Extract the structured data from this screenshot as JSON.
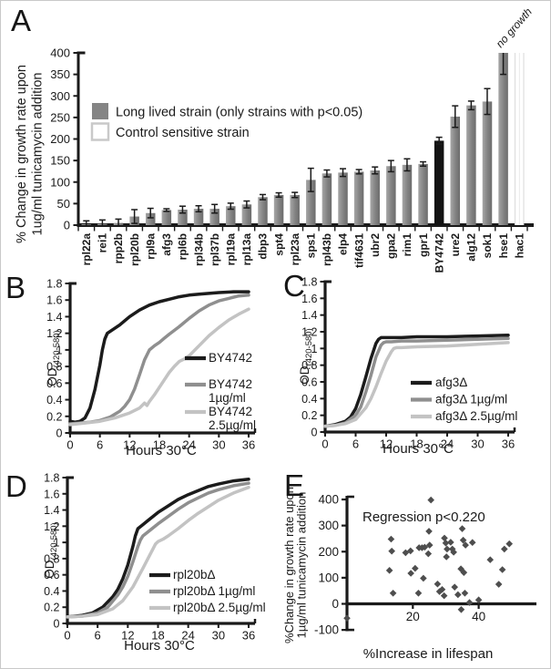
{
  "panel_letters": [
    "A",
    "B",
    "C",
    "D",
    "E"
  ],
  "colors": {
    "axis": "#1a1a1a",
    "bar_dark": "#828282",
    "bar_black": "#131313",
    "bar_control_stroke": "#c9c9c9",
    "legend_swatch": "#858585",
    "series": [
      "#1b1b1b",
      "#8f8f8f",
      "#c3c3c3"
    ],
    "scatter": "#4e4e4e"
  },
  "chart_data": [
    {
      "panel": "A",
      "type": "bar",
      "ylabel_lines": [
        "% Change in growth rate upon",
        "1ug/ml tunicamycin addition"
      ],
      "ylim": [
        0,
        400
      ],
      "yticks": [
        0,
        50,
        100,
        150,
        200,
        250,
        300,
        350,
        400
      ],
      "legend": [
        {
          "label": "Long lived strain (only strains with p<0.05)",
          "swatch": "dark"
        },
        {
          "label": "Control sensitive strain",
          "swatch": "control"
        }
      ],
      "annotation": "no growth",
      "categories": [
        "rpl22a",
        "rei1",
        "rpp2b",
        "rpl20b",
        "rpl9a",
        "afg3",
        "rpl6b",
        "rpl34b",
        "rpl37b",
        "rpl19a",
        "rpl13a",
        "dbp3",
        "spt4",
        "rpl23a",
        "sps1",
        "rpl43b",
        "elp4",
        "tif4631",
        "ubr2",
        "gpa2",
        "rim1",
        "gpr1",
        "BY4742",
        "ure2",
        "alg12",
        "sok1",
        "hse1",
        "hac1"
      ],
      "values": [
        2,
        3,
        5,
        20,
        28,
        35,
        36,
        38,
        38,
        44,
        48,
        65,
        70,
        70,
        105,
        120,
        122,
        124,
        127,
        137,
        140,
        142,
        196,
        252,
        278,
        287,
        400,
        400
      ],
      "errors": [
        8,
        9,
        9,
        16,
        11,
        3,
        8,
        7,
        10,
        7,
        8,
        6,
        5,
        6,
        27,
        8,
        9,
        5,
        8,
        13,
        14,
        5,
        8,
        25,
        10,
        30,
        50,
        0
      ],
      "bar_styles": [
        "dark",
        "dark",
        "dark",
        "dark",
        "dark",
        "dark",
        "dark",
        "dark",
        "dark",
        "dark",
        "dark",
        "dark",
        "dark",
        "dark",
        "dark",
        "dark",
        "dark",
        "dark",
        "dark",
        "dark",
        "dark",
        "dark",
        "black",
        "dark",
        "dark",
        "dark",
        "dark",
        "control"
      ]
    },
    {
      "panel": "B",
      "type": "line",
      "xlabel": "Hours 30°C",
      "ylabel": "OD",
      "ylabel_sub": "(420-580)",
      "xlim": [
        0,
        36
      ],
      "ylim": [
        0,
        1.8
      ],
      "xticks": [
        0,
        6,
        12,
        18,
        24,
        30,
        36
      ],
      "ytick_labels": [
        "0",
        "0.2",
        "0.4",
        "0.6",
        "0.8",
        "1",
        "1.2",
        "1.4",
        "1.6",
        "1.8"
      ],
      "series": [
        {
          "name": "BY4742",
          "legend_lines": [
            "BY4742"
          ],
          "x": [
            0,
            1,
            2,
            3,
            4,
            5,
            6,
            6.5,
            7,
            7.5,
            8,
            9,
            10,
            12,
            14,
            16,
            18,
            20,
            22,
            24,
            26,
            28,
            30,
            33,
            36
          ],
          "y": [
            0.14,
            0.13,
            0.14,
            0.18,
            0.3,
            0.52,
            0.82,
            1.0,
            1.13,
            1.2,
            1.22,
            1.26,
            1.3,
            1.4,
            1.48,
            1.54,
            1.58,
            1.61,
            1.64,
            1.66,
            1.67,
            1.68,
            1.69,
            1.7,
            1.7
          ]
        },
        {
          "name": "BY4742 1µg/ml",
          "legend_lines": [
            "BY4742",
            "1µg/ml"
          ],
          "x": [
            0,
            2,
            4,
            6,
            8,
            10,
            11,
            12,
            13,
            14,
            15,
            16,
            17,
            18,
            19,
            20,
            22,
            24,
            26,
            28,
            30,
            32,
            34,
            36
          ],
          "y": [
            0.11,
            0.12,
            0.13,
            0.15,
            0.19,
            0.26,
            0.32,
            0.4,
            0.53,
            0.7,
            0.88,
            1.0,
            1.05,
            1.09,
            1.14,
            1.19,
            1.28,
            1.38,
            1.47,
            1.54,
            1.59,
            1.62,
            1.65,
            1.66
          ]
        },
        {
          "name": "BY4742 2.5µg/ml",
          "legend_lines": [
            "BY4742",
            "2.5µg/ml"
          ],
          "x": [
            0,
            3,
            6,
            9,
            12,
            14,
            15,
            15.5,
            16,
            17,
            18,
            20,
            21,
            22,
            23,
            24,
            26,
            28,
            30,
            32,
            34,
            36
          ],
          "y": [
            0.1,
            0.12,
            0.14,
            0.18,
            0.24,
            0.3,
            0.36,
            0.33,
            0.38,
            0.46,
            0.55,
            0.73,
            0.8,
            0.86,
            0.89,
            0.93,
            1.05,
            1.17,
            1.27,
            1.36,
            1.43,
            1.49
          ]
        }
      ]
    },
    {
      "panel": "C",
      "type": "line",
      "xlabel": "Hours 30°C",
      "ylabel": "OD",
      "ylabel_sub": "(420-580)",
      "xlim": [
        0,
        36
      ],
      "ylim": [
        0,
        1.8
      ],
      "xticks": [
        0,
        6,
        12,
        18,
        24,
        30,
        36
      ],
      "ytick_labels": [
        "0",
        "0.2",
        "0.4",
        "0.6",
        "0.8",
        "1",
        "1.2",
        "1.4",
        "1.6",
        "1.8"
      ],
      "series": [
        {
          "name": "afg3Δ",
          "legend_lines": [
            "afg3Δ"
          ],
          "x": [
            0,
            2,
            4,
            5,
            6,
            7,
            8,
            9,
            10,
            10.5,
            11,
            12,
            15,
            18,
            24,
            30,
            36
          ],
          "y": [
            0.07,
            0.09,
            0.13,
            0.18,
            0.28,
            0.45,
            0.66,
            0.88,
            1.06,
            1.11,
            1.13,
            1.13,
            1.13,
            1.14,
            1.14,
            1.15,
            1.16
          ]
        },
        {
          "name": "afg3Δ 1µg/ml",
          "legend_lines": [
            "afg3Δ 1µg/ml"
          ],
          "x": [
            0,
            2,
            4,
            6,
            7,
            8,
            9,
            10,
            11,
            11.5,
            12,
            13,
            15,
            18,
            24,
            30,
            36
          ],
          "y": [
            0.07,
            0.08,
            0.11,
            0.2,
            0.3,
            0.48,
            0.68,
            0.9,
            1.04,
            1.07,
            1.08,
            1.08,
            1.09,
            1.09,
            1.1,
            1.11,
            1.12
          ]
        },
        {
          "name": "afg3Δ 2.5µg/ml",
          "legend_lines": [
            "afg3Δ 2.5µg/ml"
          ],
          "x": [
            0,
            2,
            4,
            6,
            8,
            9,
            10,
            11,
            12,
            13,
            13.5,
            14,
            15,
            18,
            24,
            30,
            36
          ],
          "y": [
            0.07,
            0.08,
            0.1,
            0.15,
            0.29,
            0.4,
            0.54,
            0.7,
            0.85,
            0.96,
            1.0,
            1.01,
            1.01,
            1.02,
            1.03,
            1.05,
            1.07
          ]
        }
      ]
    },
    {
      "panel": "D",
      "type": "line",
      "xlabel": "Hours 30°C",
      "ylabel": "OD",
      "ylabel_sub": "(420-580)",
      "xlim": [
        0,
        36
      ],
      "ylim": [
        0,
        1.8
      ],
      "xticks": [
        0,
        6,
        12,
        18,
        24,
        30,
        36
      ],
      "ytick_labels": [
        "0",
        "0.2",
        "0.4",
        "0.6",
        "0.8",
        "1",
        "1.2",
        "1.4",
        "1.6",
        "1.8"
      ],
      "series": [
        {
          "name": "rpl20bΔ",
          "legend_lines": [
            "rpl20bΔ"
          ],
          "x": [
            0,
            3,
            5,
            7,
            9,
            10,
            11,
            12,
            13,
            13.5,
            14,
            15,
            16,
            18,
            20,
            22,
            24,
            26,
            28,
            30,
            33,
            36
          ],
          "y": [
            0.08,
            0.1,
            0.13,
            0.2,
            0.33,
            0.42,
            0.55,
            0.72,
            0.95,
            1.08,
            1.17,
            1.22,
            1.27,
            1.37,
            1.45,
            1.53,
            1.59,
            1.64,
            1.69,
            1.72,
            1.76,
            1.78
          ]
        },
        {
          "name": "rpl20bΔ 1µg/ml",
          "legend_lines": [
            "rpl20bΔ 1µg/ml"
          ],
          "x": [
            0,
            3,
            6,
            8,
            10,
            11,
            12,
            13,
            14,
            14.5,
            15,
            16,
            18,
            20,
            22,
            24,
            26,
            28,
            30,
            33,
            36
          ],
          "y": [
            0.08,
            0.09,
            0.13,
            0.2,
            0.35,
            0.45,
            0.58,
            0.76,
            0.95,
            1.03,
            1.08,
            1.13,
            1.23,
            1.32,
            1.41,
            1.49,
            1.55,
            1.61,
            1.65,
            1.7,
            1.73
          ]
        },
        {
          "name": "rpl20bΔ 2.5µg/ml",
          "legend_lines": [
            "rpl20bΔ 2.5µg/ml"
          ],
          "x": [
            0,
            3,
            6,
            9,
            11,
            13,
            15,
            16,
            17,
            17.5,
            18,
            19,
            20,
            22,
            24,
            26,
            28,
            30,
            33,
            36
          ],
          "y": [
            0.08,
            0.09,
            0.11,
            0.18,
            0.28,
            0.45,
            0.68,
            0.8,
            0.92,
            0.98,
            1.01,
            1.04,
            1.08,
            1.17,
            1.27,
            1.36,
            1.44,
            1.52,
            1.61,
            1.68
          ]
        }
      ]
    },
    {
      "panel": "E",
      "type": "scatter",
      "annotation": "Regression p<0.220",
      "xlabel": "%Increase in lifespan",
      "ylabel_lines": [
        "%Change in growth rate upon",
        "1µg/ml tunicamycin addition"
      ],
      "xlim": [
        0,
        52
      ],
      "ylim": [
        -100,
        400
      ],
      "xticks": [
        20,
        40
      ],
      "yticks": [
        400,
        300,
        200,
        100,
        0,
        -100
      ],
      "points": [
        [
          13.4,
          248
        ],
        [
          13.6,
          202
        ],
        [
          12.9,
          128
        ],
        [
          14,
          41
        ],
        [
          17.8,
          196
        ],
        [
          19.3,
          203
        ],
        [
          19.4,
          117
        ],
        [
          20.7,
          136
        ],
        [
          21.7,
          41
        ],
        [
          21.9,
          215
        ],
        [
          22.8,
          215
        ],
        [
          23.6,
          217
        ],
        [
          23.2,
          98
        ],
        [
          24.9,
          278
        ],
        [
          25.1,
          225
        ],
        [
          24.7,
          192
        ],
        [
          25.5,
          398
        ],
        [
          27.5,
          76
        ],
        [
          28.1,
          47
        ],
        [
          28.9,
          55
        ],
        [
          29.5,
          31
        ],
        [
          29.6,
          252
        ],
        [
          30,
          233
        ],
        [
          30.4,
          210
        ],
        [
          30.2,
          180
        ],
        [
          31.5,
          236
        ],
        [
          32,
          210
        ],
        [
          32.4,
          198
        ],
        [
          32.7,
          64
        ],
        [
          33.7,
          35
        ],
        [
          34.6,
          134
        ],
        [
          35.5,
          120
        ],
        [
          35,
          288
        ],
        [
          35.3,
          244
        ],
        [
          36,
          225
        ],
        [
          35.8,
          41
        ],
        [
          34.7,
          -22
        ],
        [
          37.2,
          5
        ],
        [
          40,
          15
        ],
        [
          38.1,
          235
        ],
        [
          43.5,
          169
        ],
        [
          46.1,
          75
        ],
        [
          47.2,
          131
        ],
        [
          47.8,
          210
        ],
        [
          49.3,
          230
        ],
        [
          0,
          -55
        ]
      ]
    }
  ]
}
